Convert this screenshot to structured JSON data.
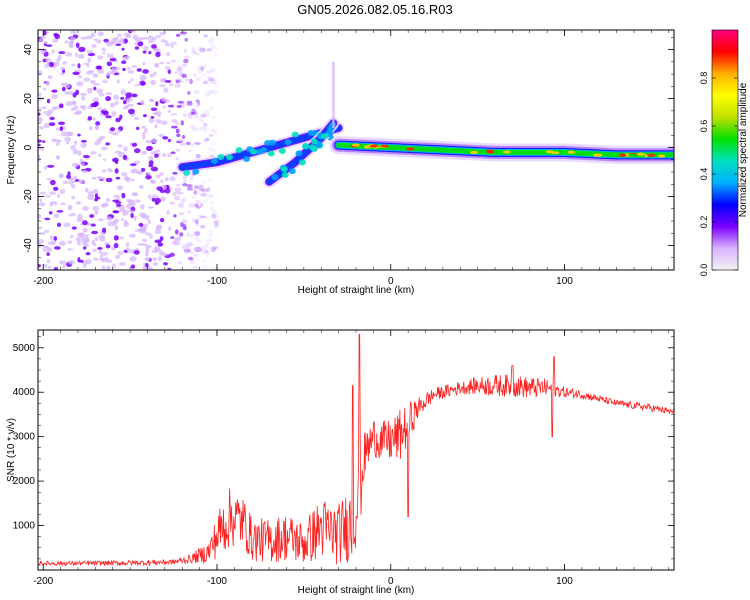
{
  "title": "GN05.2026.082.05.16.R03",
  "chart_data": [
    {
      "type": "heatmap",
      "name": "spectrogram",
      "xlabel": "Height of straight line (km)",
      "ylabel": "Frequency (Hz)",
      "xlim": [
        -203,
        163
      ],
      "ylim": [
        -50,
        48
      ],
      "xticks": [
        -200,
        -100,
        0,
        100
      ],
      "yticks": [
        -40,
        -20,
        0,
        20,
        40
      ],
      "colorbar": {
        "label": "Normalized spectral amplitude",
        "range": [
          0,
          1
        ],
        "ticks": [
          0.0,
          0.2,
          0.4,
          0.6,
          0.8
        ],
        "tick_labels": [
          "0.0",
          "0.2",
          "0.4",
          "0.6",
          "0.8"
        ],
        "stops": [
          "#f2f2f2",
          "#d9b3ff",
          "#7a00ff",
          "#0000ff",
          "#00b0ff",
          "#00e0c0",
          "#00e000",
          "#c0e000",
          "#ffff00",
          "#ffb000",
          "#ff0000",
          "#ff0080"
        ]
      },
      "features": [
        {
          "kind": "scatter_noise",
          "x_range": [
            -203,
            -110
          ],
          "freq_range": [
            -50,
            48
          ]
        },
        {
          "kind": "ridge",
          "x": [
            -120,
            -100,
            -80,
            -60,
            -40,
            -30
          ],
          "freq": [
            -8,
            -6,
            -2,
            2,
            6,
            8
          ]
        },
        {
          "kind": "ridge",
          "x": [
            -70,
            -55,
            -40,
            -33
          ],
          "freq": [
            -14,
            -6,
            4,
            10
          ]
        },
        {
          "kind": "ridge",
          "x": [
            -30,
            0,
            30,
            60,
            100,
            130,
            163
          ],
          "freq": [
            1,
            0,
            -1,
            -2,
            -2,
            -3,
            -3
          ]
        }
      ]
    },
    {
      "type": "line",
      "name": "snr",
      "xlabel": "Height of straight line (km)",
      "ylabel": "SNR (10 * v/v)",
      "xlim": [
        -203,
        163
      ],
      "ylim": [
        0,
        5400
      ],
      "xticks": [
        -200,
        -100,
        0,
        100
      ],
      "yticks": [
        1000,
        2000,
        3000,
        4000,
        5000
      ],
      "color": "#ff2020",
      "x": [
        -203,
        -180,
        -150,
        -125,
        -115,
        -105,
        -98,
        -92,
        -85,
        -80,
        -70,
        -60,
        -50,
        -40,
        -30,
        -22,
        -18,
        -15,
        -10,
        -5,
        0,
        5,
        10,
        15,
        20,
        25,
        30,
        35,
        40,
        50,
        60,
        70,
        80,
        90,
        100,
        110,
        120,
        130,
        140,
        150,
        163
      ],
      "y": [
        150,
        150,
        160,
        180,
        250,
        400,
        900,
        1200,
        1100,
        700,
        650,
        750,
        600,
        950,
        800,
        1100,
        1700,
        2600,
        3000,
        2900,
        2900,
        3000,
        3300,
        3600,
        3800,
        3950,
        4000,
        4050,
        4100,
        4150,
        4150,
        4150,
        4100,
        4100,
        4000,
        3950,
        3850,
        3750,
        3700,
        3650,
        3550
      ],
      "noise_amplitude": [
        50,
        50,
        60,
        60,
        100,
        250,
        600,
        700,
        600,
        500,
        500,
        550,
        500,
        700,
        700,
        900,
        900,
        500,
        450,
        450,
        500,
        600,
        500,
        250,
        200,
        150,
        150,
        150,
        150,
        200,
        250,
        250,
        250,
        200,
        120,
        100,
        80,
        80,
        80,
        80,
        80
      ],
      "spikes": [
        {
          "x": -18,
          "y": 5300
        },
        {
          "x": -22,
          "y": 4150
        },
        {
          "x": 10,
          "y": 1200
        },
        {
          "x": 94,
          "y": 4800
        },
        {
          "x": 70,
          "y": 4600
        },
        {
          "x": 93,
          "y": 3000
        }
      ]
    }
  ]
}
